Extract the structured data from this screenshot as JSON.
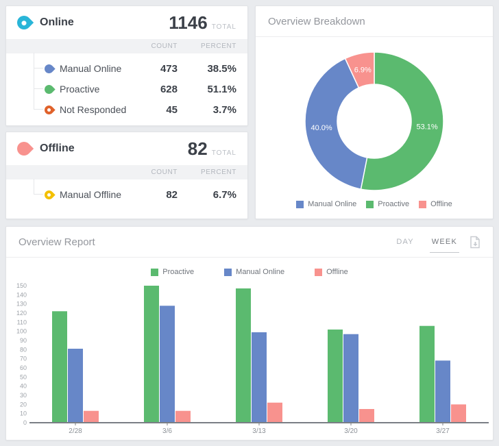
{
  "online_card": {
    "title": "Online",
    "icon_color": "#29b5d8",
    "total": "1146",
    "total_label": "TOTAL",
    "col_count": "COUNT",
    "col_percent": "PERCENT",
    "rows": [
      {
        "label": "Manual Online",
        "count": "473",
        "percent": "38.5%",
        "color": "#6787c8"
      },
      {
        "label": "Proactive",
        "count": "628",
        "percent": "51.1%",
        "color": "#5bba6f"
      },
      {
        "label": "Not Responded",
        "count": "45",
        "percent": "3.7%",
        "color": "#e0622b"
      }
    ]
  },
  "offline_card": {
    "title": "Offline",
    "icon_color": "#f8928e",
    "total": "82",
    "total_label": "TOTAL",
    "col_count": "COUNT",
    "col_percent": "PERCENT",
    "rows": [
      {
        "label": "Manual Offline",
        "count": "82",
        "percent": "6.7%",
        "color": "#f3c000"
      }
    ]
  },
  "breakdown_card": {
    "title": "Overview Breakdown"
  },
  "report_card": {
    "title": "Overview Report",
    "toggle_day": "DAY",
    "toggle_week": "WEEK",
    "selected_toggle": "WEEK"
  },
  "chart_data": [
    {
      "type": "pie",
      "variant": "donut",
      "title": "Overview Breakdown",
      "start_angle_deg": 0,
      "direction": "clockwise",
      "segments": [
        {
          "name": "Proactive",
          "value": 53.1,
          "label": "53.1%",
          "color": "#5bba6f"
        },
        {
          "name": "Manual Online",
          "value": 40.0,
          "label": "40.0%",
          "color": "#6787c8"
        },
        {
          "name": "Offline",
          "value": 6.9,
          "label": "6.9%",
          "color": "#f8928e"
        }
      ],
      "legend_order": [
        "Manual Online",
        "Proactive",
        "Offline"
      ],
      "legend_position": "bottom"
    },
    {
      "type": "bar",
      "title": "Overview Report",
      "categories": [
        "2/28",
        "3/6",
        "3/13",
        "3/20",
        "3/27"
      ],
      "series": [
        {
          "name": "Proactive",
          "color": "#5bba6f",
          "values": [
            122,
            150,
            147,
            102,
            106
          ]
        },
        {
          "name": "Manual Online",
          "color": "#6787c8",
          "values": [
            81,
            128,
            99,
            97,
            68
          ]
        },
        {
          "name": "Offline",
          "color": "#f8928e",
          "values": [
            13,
            13,
            22,
            15,
            20
          ]
        }
      ],
      "ylim": [
        0,
        150
      ],
      "ytick_step": 10,
      "legend_position": "top",
      "grid": false
    }
  ]
}
